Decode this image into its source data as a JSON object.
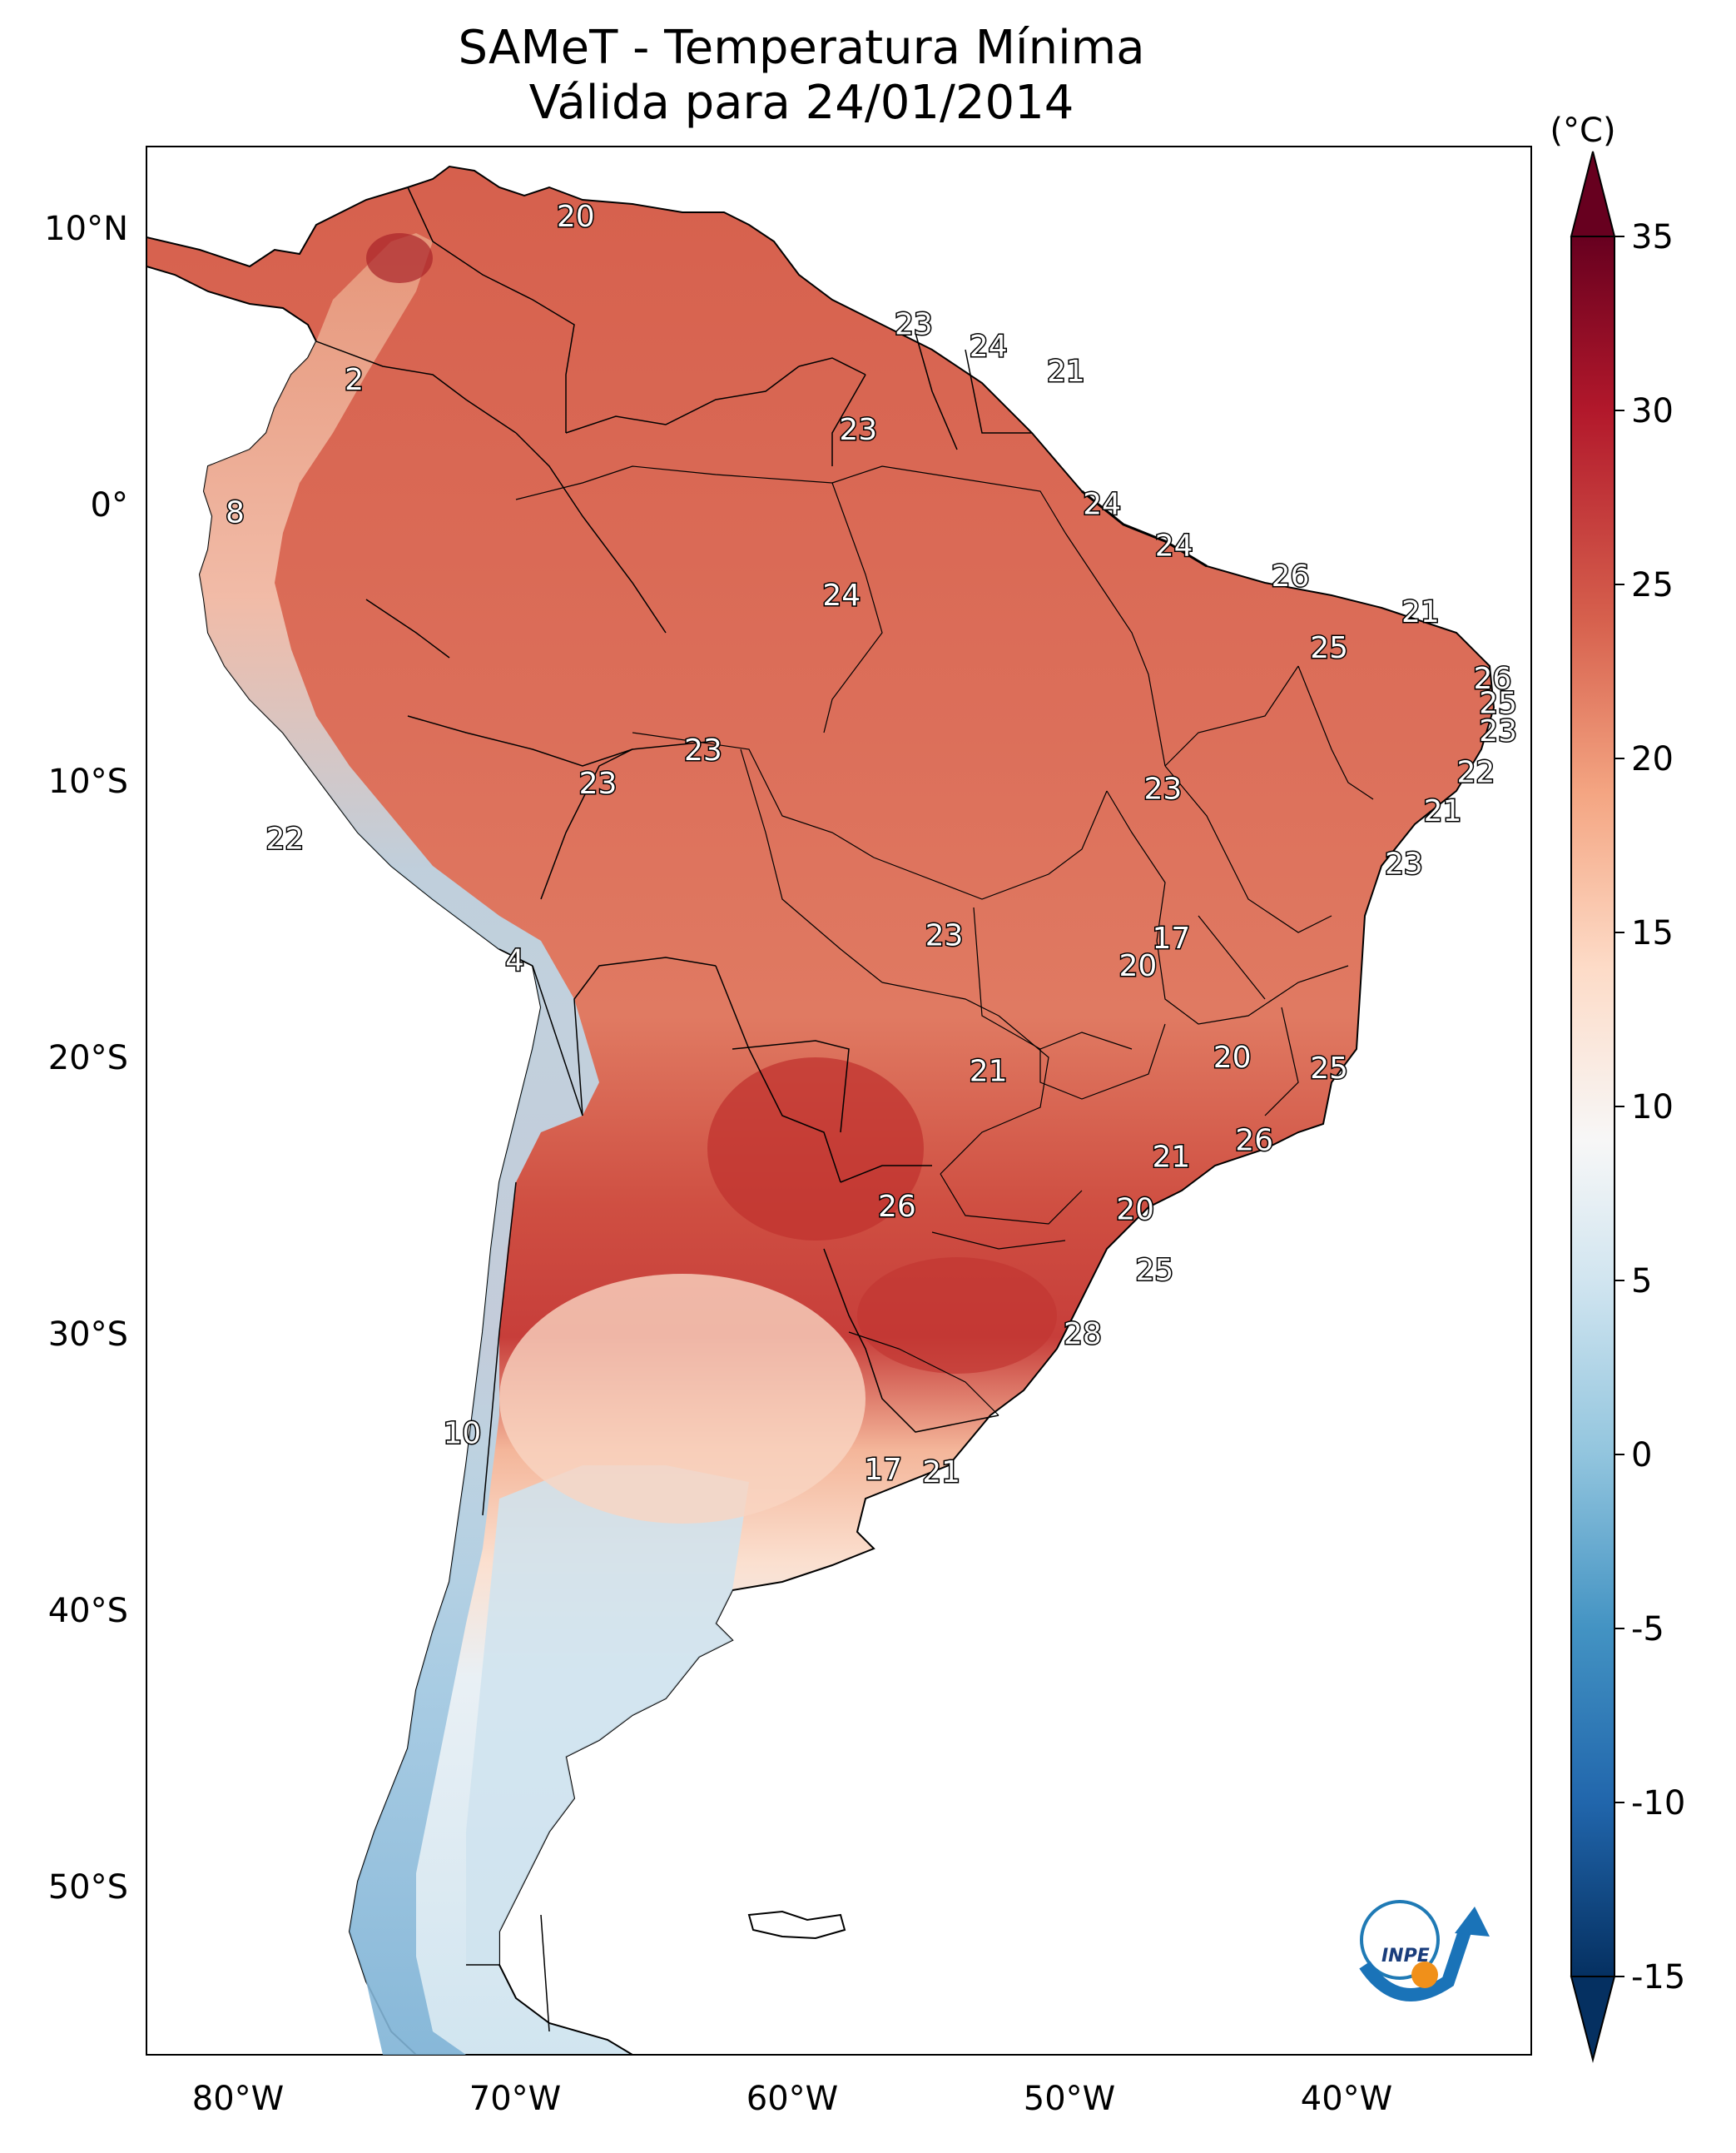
{
  "title": "SAMeT - Temperatura Mínima",
  "subtitle": "Válida para 24/01/2014",
  "map_data": {
    "type": "filled contour map",
    "region": "South America",
    "variable": "Temperatura Mínima",
    "lon_range": [
      -83,
      -33
    ],
    "lat_range": [
      -56,
      13
    ],
    "lon_ticks": [
      {
        "value": -80,
        "label": "80°W"
      },
      {
        "value": -70,
        "label": "70°W"
      },
      {
        "value": -60,
        "label": "60°W"
      },
      {
        "value": -50,
        "label": "50°W"
      },
      {
        "value": -40,
        "label": "40°W"
      }
    ],
    "lat_ticks": [
      {
        "value": 10,
        "label": "10°N"
      },
      {
        "value": 0,
        "label": "0°"
      },
      {
        "value": -10,
        "label": "10°S"
      },
      {
        "value": -20,
        "label": "20°S"
      },
      {
        "value": -30,
        "label": "30°S"
      },
      {
        "value": -40,
        "label": "40°S"
      },
      {
        "value": -50,
        "label": "50°S"
      }
    ],
    "colorbar": {
      "unit_label": "(°C)",
      "range": [
        -15,
        35
      ],
      "ticks": [
        "35",
        "30",
        "25",
        "20",
        "15",
        "10",
        "5",
        "0",
        "-5",
        "-10",
        "-15"
      ],
      "colormap": "RdBu_r",
      "colors": [
        "#053061",
        "#2166ac",
        "#4393c3",
        "#92c5de",
        "#d1e5f0",
        "#f7f7f7",
        "#fddbc7",
        "#f4a582",
        "#d6604d",
        "#b2182b",
        "#67001f"
      ]
    },
    "station_labels": [
      {
        "text": "20",
        "lon": -67.5,
        "lat": 10.5
      },
      {
        "text": "23",
        "lon": -55.3,
        "lat": 6.6
      },
      {
        "text": "24",
        "lon": -52.6,
        "lat": 5.8
      },
      {
        "text": "21",
        "lon": -49.8,
        "lat": 4.9
      },
      {
        "text": "2",
        "lon": -75.5,
        "lat": 4.6
      },
      {
        "text": "23",
        "lon": -57.3,
        "lat": 2.8
      },
      {
        "text": "8",
        "lon": -79.8,
        "lat": -0.2
      },
      {
        "text": "24",
        "lon": -48.5,
        "lat": 0.1
      },
      {
        "text": "24",
        "lon": -45.9,
        "lat": -1.4
      },
      {
        "text": "26",
        "lon": -41.7,
        "lat": -2.5
      },
      {
        "text": "24",
        "lon": -57.9,
        "lat": -3.2
      },
      {
        "text": "21",
        "lon": -37.0,
        "lat": -3.8
      },
      {
        "text": "25",
        "lon": -40.3,
        "lat": -5.1
      },
      {
        "text": "26",
        "lon": -34.4,
        "lat": -6.2
      },
      {
        "text": "25",
        "lon": -34.2,
        "lat": -7.1
      },
      {
        "text": "23",
        "lon": -34.2,
        "lat": -8.1
      },
      {
        "text": "23",
        "lon": -62.9,
        "lat": -8.8
      },
      {
        "text": "22",
        "lon": -35.0,
        "lat": -9.6
      },
      {
        "text": "23",
        "lon": -66.7,
        "lat": -10.0
      },
      {
        "text": "23",
        "lon": -46.3,
        "lat": -10.2
      },
      {
        "text": "21",
        "lon": -36.2,
        "lat": -11.0
      },
      {
        "text": "22",
        "lon": -78.0,
        "lat": -12.0
      },
      {
        "text": "23",
        "lon": -37.6,
        "lat": -12.9
      },
      {
        "text": "23",
        "lon": -54.2,
        "lat": -15.5
      },
      {
        "text": "17",
        "lon": -46.0,
        "lat": -15.6
      },
      {
        "text": "4",
        "lon": -69.7,
        "lat": -16.4
      },
      {
        "text": "20",
        "lon": -47.2,
        "lat": -16.6
      },
      {
        "text": "20",
        "lon": -43.8,
        "lat": -19.9
      },
      {
        "text": "25",
        "lon": -40.3,
        "lat": -20.3
      },
      {
        "text": "21",
        "lon": -52.6,
        "lat": -20.4
      },
      {
        "text": "26",
        "lon": -43.0,
        "lat": -22.9
      },
      {
        "text": "21",
        "lon": -46.0,
        "lat": -23.5
      },
      {
        "text": "26",
        "lon": -55.9,
        "lat": -25.3
      },
      {
        "text": "20",
        "lon": -47.3,
        "lat": -25.4
      },
      {
        "text": "25",
        "lon": -46.6,
        "lat": -27.6
      },
      {
        "text": "28",
        "lon": -49.2,
        "lat": -29.9
      },
      {
        "text": "10",
        "lon": -71.6,
        "lat": -33.5
      },
      {
        "text": "17",
        "lon": -56.4,
        "lat": -34.8
      },
      {
        "text": "21",
        "lon": -54.3,
        "lat": -34.9
      }
    ],
    "logo_text": "INPE"
  }
}
